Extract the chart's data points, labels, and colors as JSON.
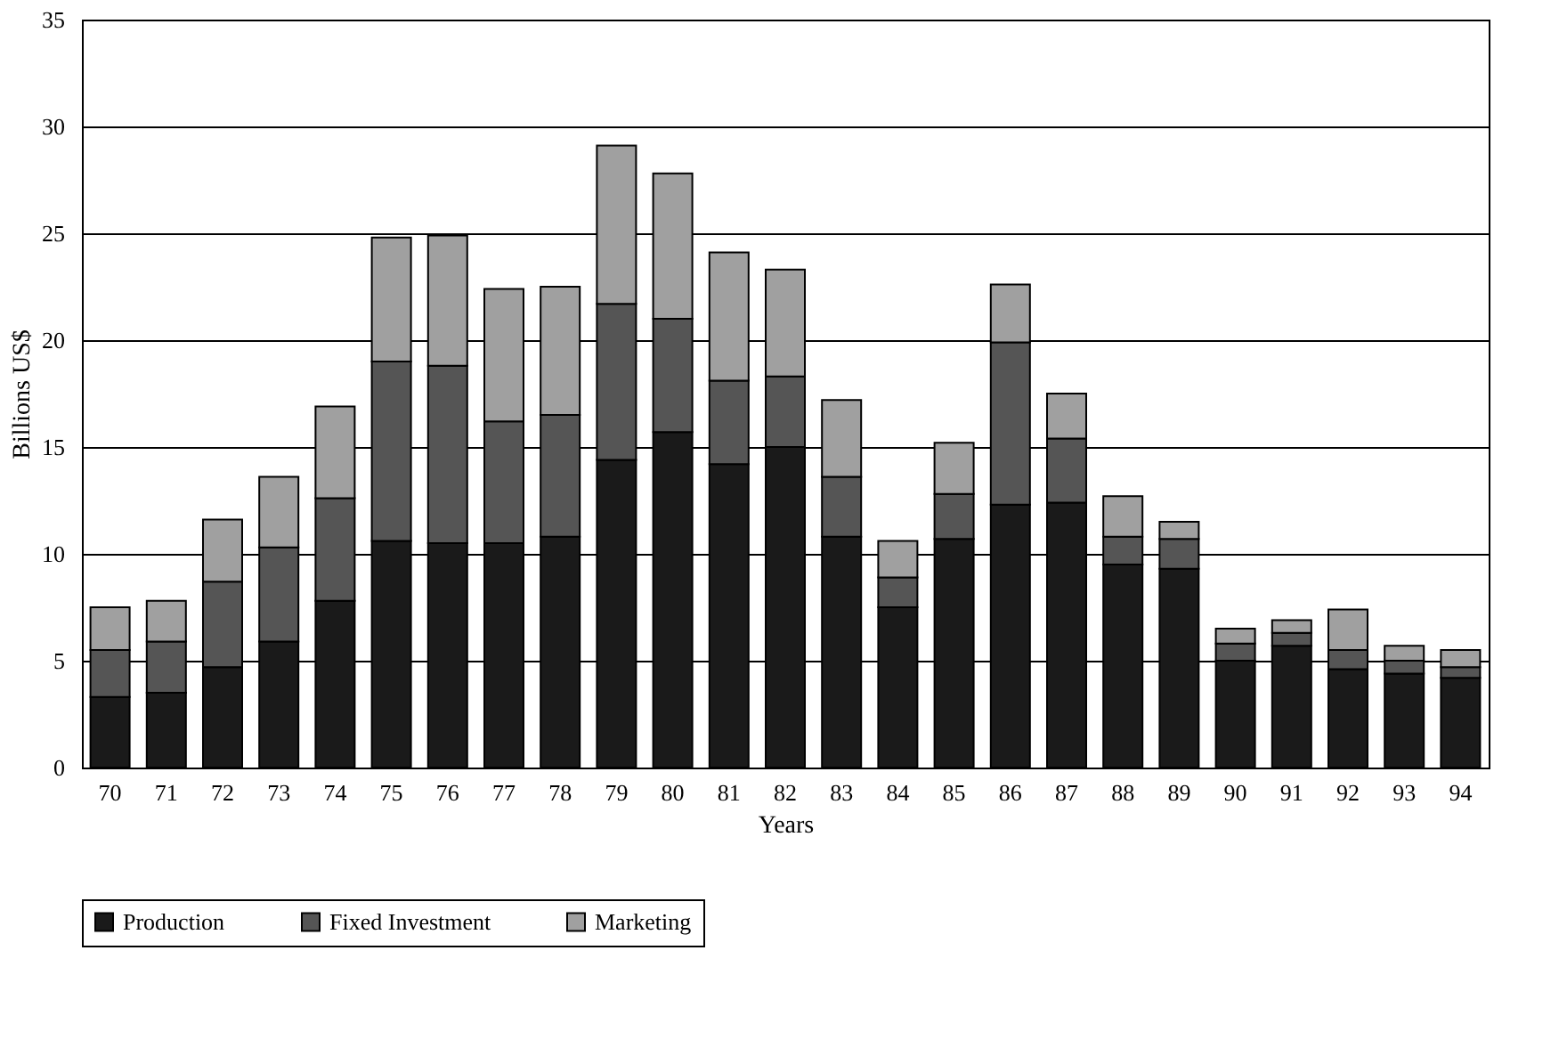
{
  "chart_data": {
    "type": "bar",
    "stacked": true,
    "xlabel": "Years",
    "ylabel": "Billions US$",
    "categories": [
      "70",
      "71",
      "72",
      "73",
      "74",
      "75",
      "76",
      "77",
      "78",
      "79",
      "80",
      "81",
      "82",
      "83",
      "84",
      "85",
      "86",
      "87",
      "88",
      "89",
      "90",
      "91",
      "92",
      "93",
      "94"
    ],
    "series": [
      {
        "name": "Production",
        "color": "#1a1a1a",
        "values": [
          3.3,
          3.5,
          4.7,
          5.9,
          7.8,
          10.6,
          10.5,
          10.5,
          10.8,
          14.4,
          15.7,
          14.2,
          15.0,
          10.8,
          7.5,
          10.7,
          12.3,
          12.4,
          9.5,
          9.3,
          5.0,
          5.7,
          4.6,
          4.4,
          4.2
        ]
      },
      {
        "name": "Fixed Investment",
        "color": "#555555",
        "values": [
          2.2,
          2.4,
          4.0,
          4.4,
          4.8,
          8.4,
          8.3,
          5.7,
          5.7,
          7.3,
          5.3,
          3.9,
          3.3,
          2.8,
          1.4,
          2.1,
          7.6,
          3.0,
          1.3,
          1.4,
          0.8,
          0.6,
          0.9,
          0.6,
          0.5
        ]
      },
      {
        "name": "Marketing",
        "color": "#a0a0a0",
        "values": [
          2.0,
          1.9,
          2.9,
          3.3,
          4.3,
          5.8,
          6.1,
          6.2,
          6.0,
          7.4,
          6.8,
          6.0,
          5.0,
          3.6,
          1.7,
          2.4,
          2.7,
          2.1,
          1.9,
          0.8,
          0.7,
          0.6,
          1.9,
          0.7,
          0.8
        ]
      }
    ],
    "ylim": [
      0,
      35
    ],
    "yticks": [
      0,
      5,
      10,
      15,
      20,
      25,
      30,
      35
    ],
    "grid": "y",
    "legend": "bottom"
  }
}
